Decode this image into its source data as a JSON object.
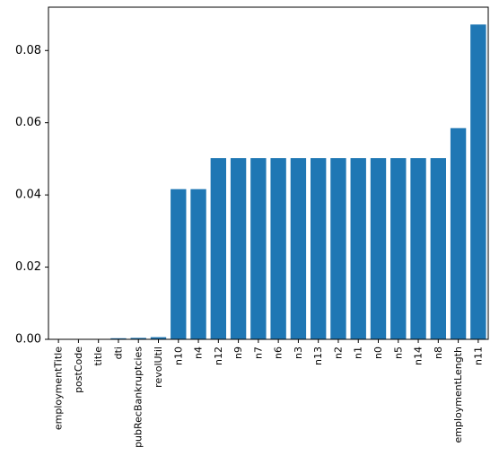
{
  "chart_data": {
    "type": "bar",
    "title": "",
    "xlabel": "",
    "ylabel": "",
    "ylim": [
      0,
      0.092
    ],
    "yticks": [
      0.0,
      0.02,
      0.04,
      0.06,
      0.08
    ],
    "ytick_labels": [
      "0.00",
      "0.02",
      "0.04",
      "0.06",
      "0.08"
    ],
    "grid": false,
    "bar_color": "#1f77b4",
    "categories": [
      "employmentTitle",
      "postCode",
      "title",
      "dti",
      "pubRecBankruptcies",
      "revolUtil",
      "n10",
      "n4",
      "n12",
      "n9",
      "n7",
      "n6",
      "n3",
      "n13",
      "n2",
      "n1",
      "n0",
      "n5",
      "n14",
      "n8",
      "employmentLength",
      "n11"
    ],
    "values": [
      0.0001,
      0.0001,
      0.0001,
      0.0003,
      0.0004,
      0.0006,
      0.0416,
      0.0416,
      0.0502,
      0.0502,
      0.0502,
      0.0502,
      0.0502,
      0.0502,
      0.0502,
      0.0502,
      0.0502,
      0.0502,
      0.0502,
      0.0502,
      0.0585,
      0.0872
    ]
  }
}
